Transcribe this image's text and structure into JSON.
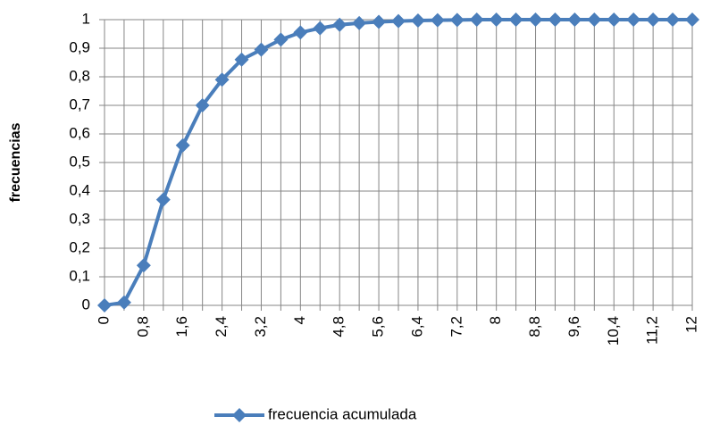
{
  "chart_data": {
    "type": "line",
    "y_label": "frecuencias",
    "categories": [
      "0",
      null,
      "0,8",
      null,
      "1,6",
      null,
      "2,4",
      null,
      "3,2",
      null,
      "4",
      null,
      "4,8",
      null,
      "5,6",
      null,
      "6,4",
      null,
      "7,2",
      null,
      "8",
      null,
      "8,8",
      null,
      "9,6",
      null,
      "10,4",
      null,
      "11,2",
      null,
      "12"
    ],
    "series": [
      {
        "name": "frecuencia acumulada",
        "color": "#4a7ebb",
        "values": [
          0,
          0.01,
          0.14,
          0.37,
          0.56,
          0.7,
          0.79,
          0.86,
          0.895,
          0.93,
          0.955,
          0.97,
          0.982,
          0.988,
          0.992,
          0.995,
          0.997,
          0.998,
          0.999,
          1,
          1,
          1,
          1,
          1,
          1,
          1,
          1,
          1,
          1,
          1,
          1
        ]
      }
    ],
    "ylim": [
      0,
      1
    ],
    "yticks": [
      0,
      {
        "value": 0.1,
        "label": "0,1"
      },
      {
        "value": 0.2,
        "label": "0,2"
      },
      {
        "value": 0.3,
        "label": "0,3"
      },
      {
        "value": 0.4,
        "label": "0,4"
      },
      {
        "value": 0.5,
        "label": "0,5"
      },
      {
        "value": 0.6,
        "label": "0,6"
      },
      {
        "value": 0.7,
        "label": "0,7"
      },
      {
        "value": 0.8,
        "label": "0,8"
      },
      {
        "value": 0.9,
        "label": "0,9"
      },
      1
    ],
    "grid": true,
    "legend": "bottom"
  }
}
